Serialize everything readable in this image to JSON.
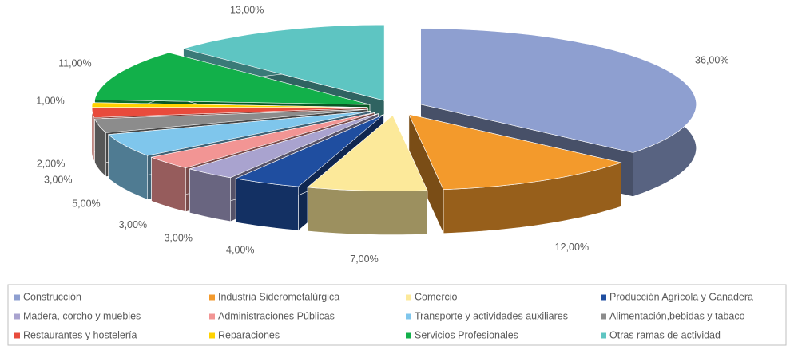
{
  "chart_data": {
    "type": "pie",
    "categories": [
      "Construcción",
      "Industria Siderometalúrgica",
      "Comercio",
      "Producción Agrícola y Ganadera",
      "Madera, corcho y muebles",
      "Administraciones Públicas",
      "Transporte y actividades auxiliares",
      "Alimentación,bebidas y tabaco",
      "Restaurantes y hostelería",
      "Reparaciones",
      "Servicios Profesionales",
      "Otras ramas de actividad"
    ],
    "values": [
      36,
      12,
      7,
      4,
      3,
      3,
      5,
      3,
      2,
      1,
      11,
      13
    ],
    "value_labels": [
      "36,00%",
      "12,00%",
      "7,00%",
      "4,00%",
      "3,00%",
      "3,00%",
      "5,00%",
      "3,00%",
      "2,00%",
      "1,00%",
      "11,00%",
      "13,00%"
    ],
    "colors": [
      "#8e9fd0",
      "#f39a2c",
      "#fce99a",
      "#1f4ea0",
      "#a9a3cf",
      "#f29594",
      "#7fc6ec",
      "#8c8c8c",
      "#e84b3c",
      "#ffd200",
      "#12b04a",
      "#5ec5c2"
    ],
    "legend": "bottom"
  }
}
